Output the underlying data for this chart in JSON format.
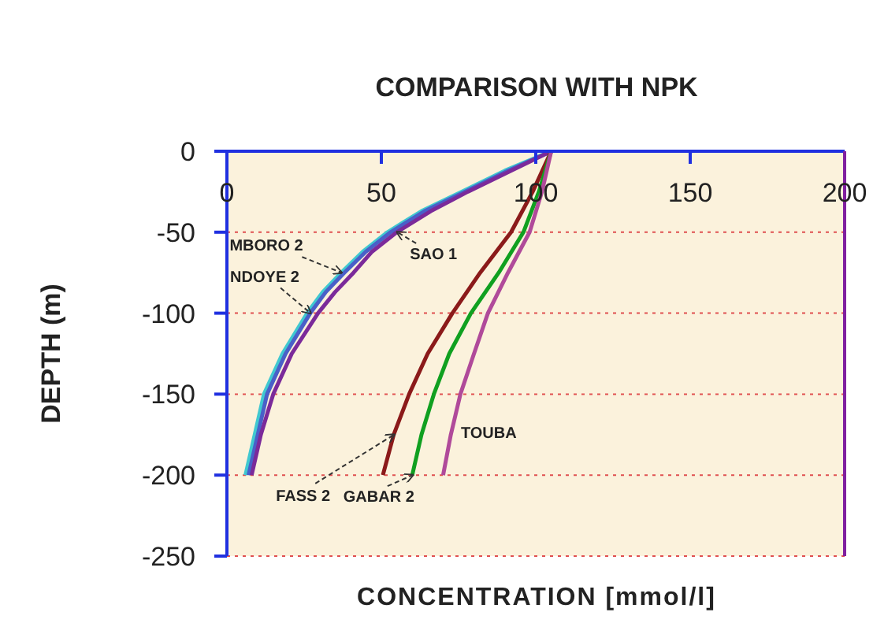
{
  "chart_data": {
    "type": "line",
    "title": "COMPARISON WITH NPK",
    "xlabel": "CONCENTRATION [mmol/l]",
    "ylabel": "DEPTH (m)",
    "xlim": [
      0,
      200
    ],
    "xticks": [
      0,
      50,
      100,
      150,
      200
    ],
    "ylim": [
      -250,
      0
    ],
    "yticks": [
      0,
      -50,
      -100,
      -150,
      -200,
      -250
    ],
    "grid": "y",
    "line_style": "solid",
    "marker": "none",
    "series": [
      {
        "name": "MBORO 2",
        "color": "#40c8d0",
        "x": [
          105,
          90,
          76,
          63,
          52,
          44,
          37,
          31,
          26,
          18,
          12,
          9,
          6
        ],
        "values": [
          0,
          -12,
          -25,
          -37,
          -50,
          -62,
          -75,
          -87,
          -100,
          -125,
          -150,
          -175,
          -200
        ]
      },
      {
        "name": "NDOYE 2",
        "color": "#4a5fc8",
        "x": [
          105,
          91,
          77,
          64,
          53,
          45,
          38,
          32,
          27,
          19,
          13,
          10,
          7
        ],
        "values": [
          0,
          -12,
          -25,
          -37,
          -50,
          -62,
          -75,
          -87,
          -100,
          -125,
          -150,
          -175,
          -200
        ]
      },
      {
        "name": "SAO 1",
        "color": "#7b2a9a",
        "x": [
          105,
          92,
          78,
          66,
          55,
          47,
          41,
          35,
          29.5,
          21,
          15,
          11,
          8
        ],
        "values": [
          0,
          -12,
          -25,
          -37,
          -50,
          -62,
          -75,
          -87,
          -100,
          -125,
          -150,
          -175,
          -200
        ]
      },
      {
        "name": "FASS 2",
        "color": "#8b1a1a",
        "x": [
          105,
          99,
          92,
          82,
          73,
          65,
          59,
          54,
          50.5
        ],
        "values": [
          0,
          -25,
          -50,
          -75,
          -100,
          -125,
          -150,
          -175,
          -200
        ]
      },
      {
        "name": "GABAR 2",
        "color": "#10a020",
        "x": [
          105,
          101,
          96,
          88,
          79,
          72,
          67,
          63,
          60
        ],
        "values": [
          0,
          -25,
          -50,
          -75,
          -100,
          -125,
          -150,
          -175,
          -200
        ]
      },
      {
        "name": "TOUBA",
        "color": "#b04a9a",
        "x": [
          105,
          102,
          98,
          91,
          84.5,
          80,
          75.6,
          72.5,
          70
        ],
        "values": [
          0,
          -25,
          -50,
          -75,
          -100,
          -125,
          -150,
          -175,
          -200
        ]
      }
    ]
  }
}
